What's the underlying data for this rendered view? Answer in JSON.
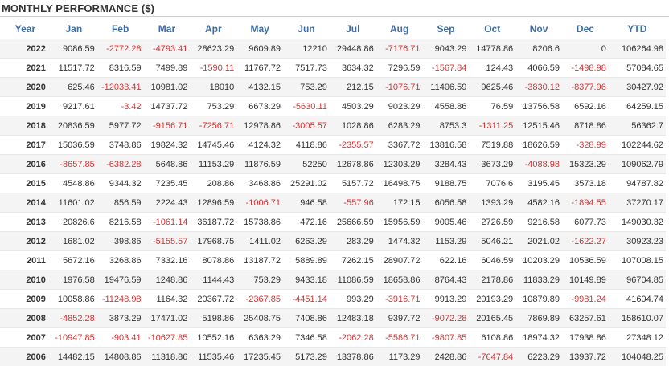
{
  "title": "MONTHLY PERFORMANCE ($)",
  "colors": {
    "header_text": "#3f6da4",
    "negative": "#e03030",
    "text": "#333333",
    "row_alt": "#f4f4f4"
  },
  "columns": [
    "Year",
    "Jan",
    "Feb",
    "Mar",
    "Apr",
    "May",
    "Jun",
    "Jul",
    "Aug",
    "Sep",
    "Oct",
    "Nov",
    "Dec",
    "YTD"
  ],
  "rows": [
    [
      "2022",
      "9086.59",
      "-2772.28",
      "-4793.41",
      "28623.29",
      "9609.89",
      "12210",
      "29448.86",
      "-7176.71",
      "9043.29",
      "14778.86",
      "8206.6",
      "0",
      "106264.98"
    ],
    [
      "2021",
      "11517.72",
      "8316.59",
      "7499.89",
      "-1590.11",
      "11767.72",
      "7517.73",
      "3634.32",
      "7296.59",
      "-1567.84",
      "124.43",
      "4066.59",
      "-1498.98",
      "57084.65"
    ],
    [
      "2020",
      "625.46",
      "-12033.41",
      "10981.02",
      "18010",
      "4132.15",
      "753.29",
      "212.15",
      "-1076.71",
      "11406.59",
      "9625.46",
      "-3830.12",
      "-8377.96",
      "30427.92"
    ],
    [
      "2019",
      "9217.61",
      "-3.42",
      "14737.72",
      "753.29",
      "6673.29",
      "-5630.11",
      "4503.29",
      "9023.29",
      "4558.86",
      "76.59",
      "13756.58",
      "6592.16",
      "64259.15"
    ],
    [
      "2018",
      "20836.59",
      "5977.72",
      "-9156.71",
      "-7256.71",
      "12978.86",
      "-3005.57",
      "1028.86",
      "6283.29",
      "8753.3",
      "-1311.25",
      "12515.46",
      "8718.86",
      "56362.7"
    ],
    [
      "2017",
      "15036.59",
      "3748.86",
      "19824.32",
      "14745.46",
      "4124.32",
      "4118.86",
      "-2355.57",
      "3367.72",
      "13816.58",
      "7519.88",
      "18626.59",
      "-328.99",
      "102244.62"
    ],
    [
      "2016",
      "-8657.85",
      "-6382.28",
      "5648.86",
      "11153.29",
      "11876.59",
      "52250",
      "12678.86",
      "12303.29",
      "3284.43",
      "3673.29",
      "-4088.98",
      "15323.29",
      "109062.79"
    ],
    [
      "2015",
      "4548.86",
      "9344.32",
      "7235.45",
      "208.86",
      "3468.86",
      "25291.02",
      "5157.72",
      "16498.75",
      "9188.75",
      "7076.6",
      "3195.45",
      "3573.18",
      "94787.82"
    ],
    [
      "2014",
      "11601.02",
      "856.59",
      "2224.43",
      "12896.59",
      "-1006.71",
      "946.58",
      "-557.96",
      "172.15",
      "6056.58",
      "1393.29",
      "4582.16",
      "-1894.55",
      "37270.17"
    ],
    [
      "2013",
      "20826.6",
      "8216.58",
      "-1061.14",
      "36187.72",
      "15738.86",
      "472.16",
      "25666.59",
      "15956.59",
      "9005.46",
      "2726.59",
      "9216.58",
      "6077.73",
      "149030.32"
    ],
    [
      "2012",
      "1681.02",
      "398.86",
      "-5155.57",
      "17968.75",
      "1411.02",
      "6263.29",
      "283.29",
      "1474.32",
      "1153.29",
      "5046.21",
      "2021.02",
      "-1622.27",
      "30923.23"
    ],
    [
      "2011",
      "5672.16",
      "3268.86",
      "7332.16",
      "8078.86",
      "13187.72",
      "5889.89",
      "7262.15",
      "28907.72",
      "622.16",
      "6046.59",
      "10203.29",
      "10536.59",
      "107008.15"
    ],
    [
      "2010",
      "1976.58",
      "19476.59",
      "1248.86",
      "1144.43",
      "753.29",
      "9433.18",
      "11086.59",
      "18658.86",
      "8764.43",
      "2178.86",
      "11833.29",
      "10149.89",
      "96704.85"
    ],
    [
      "2009",
      "10058.86",
      "-11248.98",
      "1164.32",
      "20367.72",
      "-2367.85",
      "-4451.14",
      "993.29",
      "-3916.71",
      "9913.29",
      "20193.29",
      "10879.89",
      "-9981.24",
      "41604.74"
    ],
    [
      "2008",
      "-4852.28",
      "3873.29",
      "17471.02",
      "5198.86",
      "25408.75",
      "7408.86",
      "12483.18",
      "9397.72",
      "-9072.28",
      "20165.45",
      "7869.89",
      "63257.61",
      "158610.07"
    ],
    [
      "2007",
      "-10947.85",
      "-903.41",
      "-10627.85",
      "10552.16",
      "6363.29",
      "7346.58",
      "-2062.28",
      "-5586.71",
      "-9807.85",
      "6108.86",
      "18974.32",
      "17938.86",
      "27348.12"
    ],
    [
      "2006",
      "14482.15",
      "14808.86",
      "11318.86",
      "11535.46",
      "17235.45",
      "5173.29",
      "13378.86",
      "1173.29",
      "2428.86",
      "-7647.84",
      "6223.29",
      "13937.72",
      "104048.25"
    ]
  ]
}
